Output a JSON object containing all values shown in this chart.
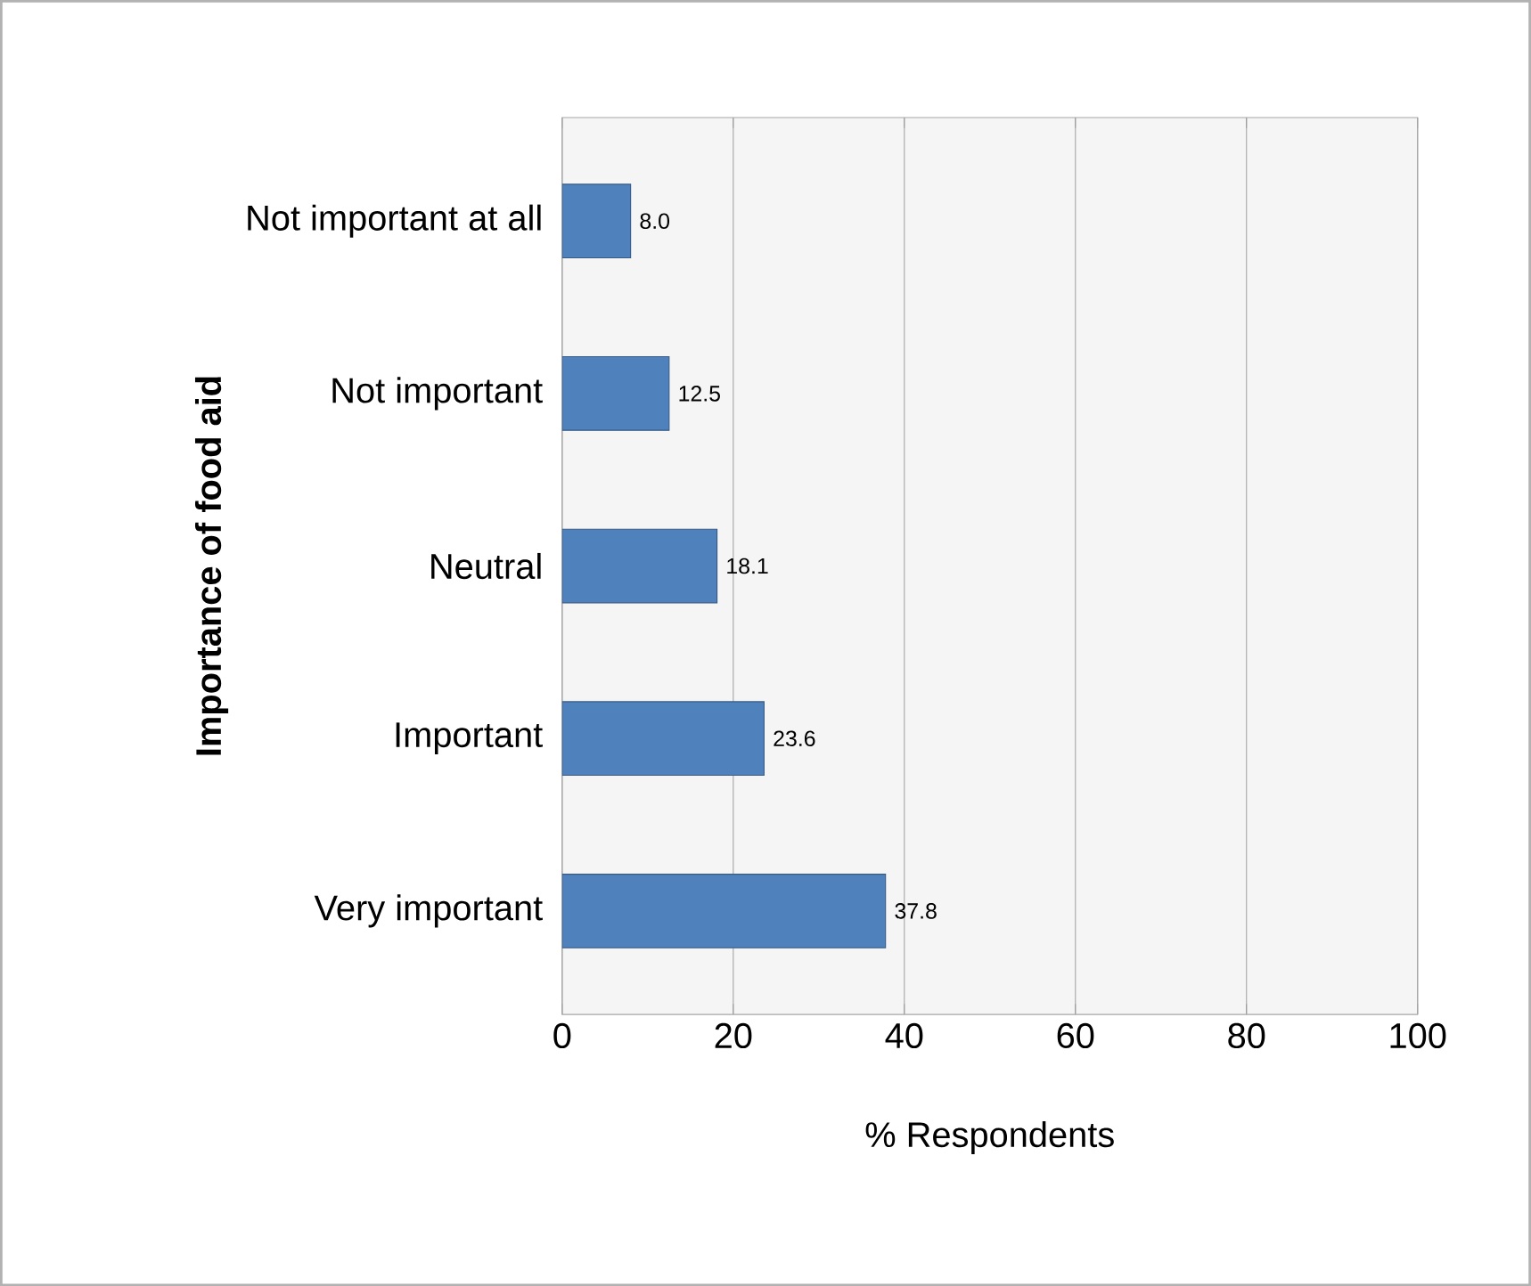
{
  "chart_data": {
    "type": "bar",
    "orientation": "horizontal",
    "xlabel": "% Respondents",
    "ylabel": "Importance of food aid",
    "categories": [
      "Not important at all",
      "Not important",
      "Neutral",
      "Important",
      "Very important"
    ],
    "values": [
      8.0,
      12.5,
      18.1,
      23.6,
      37.8
    ],
    "value_labels": [
      "8.0",
      "12.5",
      "18.1",
      "23.6",
      "37.8"
    ],
    "color": "#4f81bd",
    "xlim": [
      0,
      100
    ],
    "xticks": [
      0,
      20,
      40,
      60,
      80,
      100
    ],
    "grid": "x"
  }
}
